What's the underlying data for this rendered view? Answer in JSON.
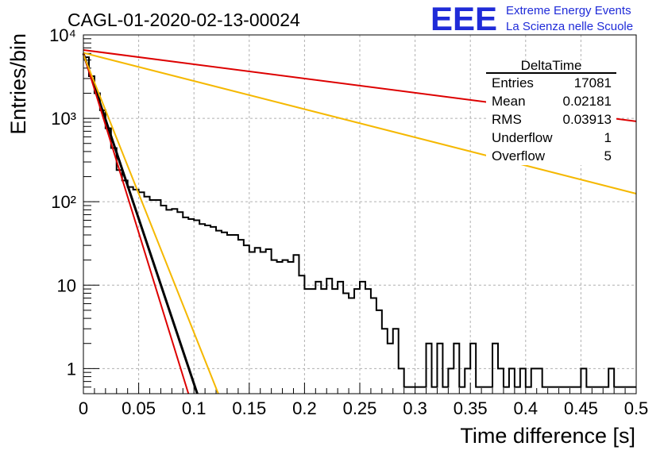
{
  "header": {
    "run_title": "CAGL-01-2020-02-13-00024",
    "logo_text": "EEE",
    "logo_line1": "Extreme Energy Events",
    "logo_line2": "La Scienza nelle Scuole",
    "logo_color": "#1f2bd8"
  },
  "stats_box": {
    "title": "DeltaTime",
    "rows": [
      {
        "label": "Entries",
        "value": "17081"
      },
      {
        "label": "Mean",
        "value": "0.02181"
      },
      {
        "label": "RMS",
        "value": "0.03913"
      },
      {
        "label": "Underflow",
        "value": "1"
      },
      {
        "label": "Overflow",
        "value": "5"
      }
    ]
  },
  "chart_data": {
    "type": "line",
    "xlabel": "Time difference [s]",
    "ylabel": "Entries/bin",
    "xlim": [
      0,
      0.5
    ],
    "ylim": [
      0.5,
      10000
    ],
    "log_y": true,
    "grid": true,
    "x_ticks": [
      "0",
      "0.05",
      "0.1",
      "0.15",
      "0.2",
      "0.25",
      "0.3",
      "0.35",
      "0.4",
      "0.45",
      "0.5"
    ],
    "y_ticks": [
      {
        "value": 1,
        "label": "1"
      },
      {
        "value": 10,
        "label": "10"
      },
      {
        "value": 100,
        "label": "10²"
      },
      {
        "value": 1000,
        "label": "10³"
      },
      {
        "value": 10000,
        "label": "10⁴"
      }
    ],
    "histogram": {
      "bin_width": 0.005,
      "color": "#000000",
      "counts": [
        5400,
        3200,
        2000,
        1250,
        760,
        440,
        240,
        180,
        150,
        140,
        130,
        115,
        105,
        105,
        90,
        80,
        82,
        75,
        65,
        62,
        60,
        54,
        52,
        50,
        45,
        43,
        40,
        40,
        35,
        30,
        25,
        28,
        25,
        27,
        20,
        19,
        20,
        19,
        23,
        13,
        9,
        9,
        11,
        9,
        12,
        9,
        11,
        8,
        7,
        9,
        11,
        9,
        7,
        5,
        3,
        2,
        3,
        1,
        0.6,
        0.6,
        0.6,
        0.6,
        2,
        0.6,
        2,
        0.6,
        1,
        2,
        0.6,
        1,
        2,
        0.6,
        0.6,
        0.6,
        2,
        1,
        0.6,
        1,
        0.6,
        1,
        0.6,
        1,
        1,
        0.6,
        0.6,
        0.6,
        0.6,
        0.6,
        0.6,
        0.6,
        1,
        0.6,
        0.6,
        0.6,
        0.6,
        1,
        0.6,
        0.6,
        0.6,
        0.6
      ]
    },
    "series": [
      {
        "color": "#000000",
        "width": 3,
        "points": [
          [
            0,
            6000
          ],
          [
            0.103,
            0.5
          ]
        ]
      },
      {
        "color": "#dd0000",
        "width": 2,
        "points": [
          [
            0,
            6000
          ],
          [
            0.095,
            0.5
          ]
        ]
      },
      {
        "color": "#f5b800",
        "width": 2,
        "points": [
          [
            0,
            5800
          ],
          [
            0.122,
            0.5
          ]
        ]
      },
      {
        "color": "#dd0000",
        "width": 2,
        "points": [
          [
            0,
            6600
          ],
          [
            0.5,
            920
          ]
        ]
      },
      {
        "color": "#f5b800",
        "width": 2,
        "points": [
          [
            0,
            6100
          ],
          [
            0.5,
            125
          ]
        ]
      }
    ]
  }
}
